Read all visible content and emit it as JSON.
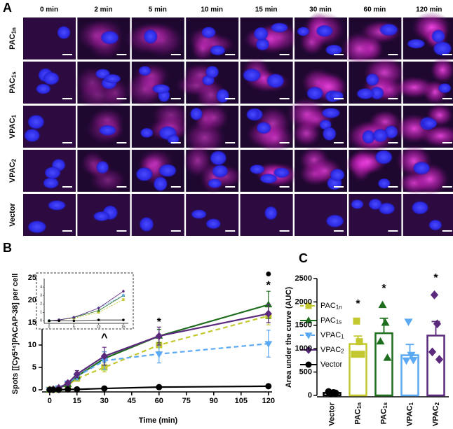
{
  "panel_labels": [
    "A",
    "B",
    "C"
  ],
  "panel_a": {
    "columns": [
      "0 min",
      "2 min",
      "5 min",
      "10 min",
      "15 min",
      "30 min",
      "60 min",
      "120 min"
    ],
    "rows": [
      "PAC1n",
      "PAC1s",
      "VPAC1",
      "VPAC2",
      "Vector"
    ]
  },
  "chart_data": [
    {
      "type": "line",
      "xlabel": "Time (min)",
      "ylabel": "Spots [[Cy5³⁴]PACAP-38] per cell",
      "x": [
        0,
        2,
        5,
        10,
        15,
        30,
        60,
        120
      ],
      "xlim": [
        -3,
        122
      ],
      "xticks": [
        0,
        15,
        30,
        45,
        60,
        75,
        90,
        105,
        120
      ],
      "ylim": [
        0,
        25
      ],
      "yticks": [
        0,
        5,
        10,
        15,
        20,
        25
      ],
      "series": [
        {
          "name": "PAC1n",
          "color": "#c3c82e",
          "marker": "square",
          "dashed": true,
          "values": [
            0,
            0.1,
            0.3,
            1,
            2.5,
            5,
            10,
            16.5
          ],
          "errors": [
            0,
            0,
            0.1,
            0.3,
            0.5,
            1,
            1.5,
            2
          ]
        },
        {
          "name": "PAC1s",
          "color": "#1f6e1f",
          "marker": "triangle-up",
          "dashed": false,
          "values": [
            0,
            0.1,
            0.4,
            1.2,
            3,
            7,
            12,
            19
          ],
          "errors": [
            0,
            0,
            0.1,
            0.3,
            0.6,
            1.5,
            1.5,
            3
          ]
        },
        {
          "name": "VPAC1",
          "color": "#5aa9f2",
          "marker": "triangle-down",
          "dashed": true,
          "values": [
            0,
            0.1,
            0.4,
            1.5,
            3,
            6.5,
            8,
            10.3
          ],
          "errors": [
            0,
            0,
            0.1,
            0.4,
            0.8,
            2,
            2,
            3
          ]
        },
        {
          "name": "VPAC2",
          "color": "#5b2a7d",
          "marker": "diamond",
          "dashed": false,
          "values": [
            0,
            0.1,
            0.4,
            1.5,
            3.5,
            7.5,
            12,
            17
          ],
          "errors": [
            0,
            0,
            0.1,
            0.4,
            0.8,
            2,
            2,
            2
          ]
        },
        {
          "name": "Vector",
          "color": "#000000",
          "marker": "circle",
          "dashed": false,
          "values": [
            0,
            0,
            0,
            0.1,
            0.1,
            0.3,
            0.6,
            0.8
          ],
          "errors": [
            0,
            0,
            0,
            0,
            0,
            0.1,
            0.2,
            0.2
          ]
        }
      ],
      "annotations": [
        {
          "text": "^",
          "x": 30,
          "y": 11.5
        },
        {
          "text": "*",
          "x": 60,
          "y": 15
        },
        {
          "text": "*",
          "x": 120,
          "y": 23.2
        },
        {
          "text": "●",
          "x": 120,
          "y": 25.8
        }
      ],
      "inset": {
        "xlim": [
          -1,
          16
        ],
        "xticks": [
          0,
          5,
          10,
          15
        ],
        "ylim": [
          -0.3,
          5
        ],
        "yticks": [
          0,
          1,
          2,
          3,
          4
        ]
      }
    },
    {
      "type": "bar",
      "ylabel": "Area under the curve (AUC)",
      "categories": [
        "Vector",
        "PAC1n",
        "PAC1s",
        "VPAC1",
        "VPAC2"
      ],
      "colors": [
        "#000000",
        "#c3c82e",
        "#1f6e1f",
        "#5aa9f2",
        "#5b2a7d"
      ],
      "markers": [
        "circle",
        "square",
        "triangle-up",
        "triangle-down",
        "diamond"
      ],
      "values": [
        55,
        1100,
        1330,
        860,
        1280
      ],
      "errors": [
        15,
        170,
        320,
        230,
        300
      ],
      "points": [
        [
          40,
          60,
          80,
          50
        ],
        [
          1590,
          1150,
          880,
          880
        ],
        [
          1930,
          1550,
          1150,
          800
        ],
        [
          1580,
          870,
          750,
          760
        ],
        [
          2150,
          1530,
          930,
          770
        ]
      ],
      "ylim": [
        0,
        2500
      ],
      "yticks": [
        0,
        500,
        1000,
        1500,
        2000,
        2500
      ],
      "annotations": [
        {
          "text": "*",
          "category": "PAC1n",
          "y": 1950
        },
        {
          "text": "*",
          "category": "PAC1s",
          "y": 2280
        },
        {
          "text": "*",
          "category": "VPAC2",
          "y": 2500
        }
      ]
    }
  ]
}
